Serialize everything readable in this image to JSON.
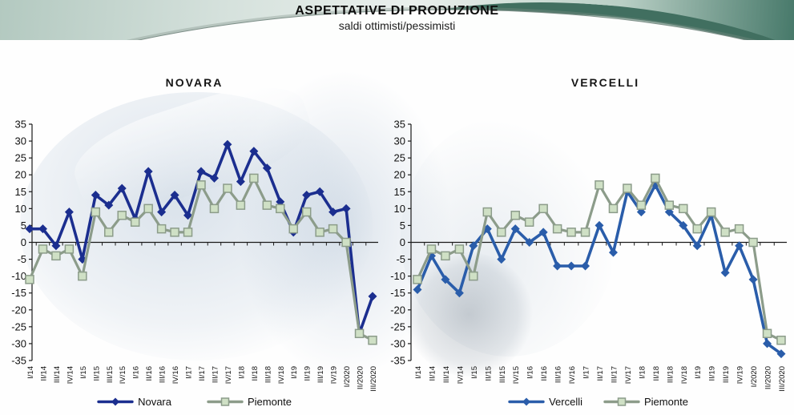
{
  "header": {
    "title": "ASPETTATIVE DI PRODUZIONE",
    "subtitle": "saldi ottimisti/pessimisti"
  },
  "colors": {
    "novara_line": "#1B2E8F",
    "vercelli_line": "#2A5DAA",
    "piemonte_line": "#8C9C8A",
    "piemonte_marker_fill": "#CFE0C5",
    "axis": "#1a1a1a",
    "banner_teal": "#416F60"
  },
  "chart_data": [
    {
      "type": "line",
      "title": "NOVARA",
      "ylim": [
        -35,
        35
      ],
      "ytick_step": 5,
      "grid": false,
      "legend_position": "bottom",
      "categories": [
        "I/14",
        "II/14",
        "III/14",
        "IV/14",
        "I/15",
        "II/15",
        "III/15",
        "IV/15",
        "I/16",
        "II/16",
        "III/16",
        "IV/16",
        "I/17",
        "II/17",
        "III/17",
        "IV/17",
        "I/18",
        "II/18",
        "III/18",
        "IV/18",
        "I/19",
        "II/19",
        "III/19",
        "IV/19",
        "I/2020",
        "II/2020",
        "III/2020"
      ],
      "series": [
        {
          "name": "Novara",
          "marker": "diamond",
          "color": "#1B2E8F",
          "values": [
            4,
            4,
            -1,
            9,
            -5,
            14,
            11,
            16,
            7,
            21,
            9,
            14,
            8,
            21,
            19,
            29,
            18,
            27,
            22,
            12,
            3,
            14,
            15,
            9,
            10,
            -27,
            -16
          ]
        },
        {
          "name": "Piemonte",
          "marker": "square",
          "color": "#8C9C8A",
          "marker_fill": "#CFE0C5",
          "values": [
            -11,
            -2,
            -4,
            -2,
            -10,
            9,
            3,
            8,
            6,
            10,
            4,
            3,
            3,
            17,
            10,
            16,
            11,
            19,
            11,
            10,
            4,
            9,
            3,
            4,
            0,
            -27,
            -29
          ]
        }
      ]
    },
    {
      "type": "line",
      "title": "VERCELLI",
      "ylim": [
        -35,
        35
      ],
      "ytick_step": 5,
      "grid": false,
      "legend_position": "bottom",
      "categories": [
        "I/14",
        "II/14",
        "III/14",
        "IV/14",
        "I/15",
        "II/15",
        "III/15",
        "IV/15",
        "I/16",
        "II/16",
        "III/16",
        "IV/16",
        "I/17",
        "II/17",
        "III/17",
        "IV/17",
        "I/18",
        "II/18",
        "III/18",
        "IV/18",
        "I/19",
        "II/19",
        "III/19",
        "IV/19",
        "I/2020",
        "II/2020",
        "III/2020"
      ],
      "series": [
        {
          "name": "Vercelli",
          "marker": "diamond",
          "color": "#2A5DAA",
          "values": [
            -14,
            -4,
            -11,
            -15,
            -1,
            4,
            -5,
            4,
            0,
            3,
            -7,
            -7,
            -7,
            5,
            -3,
            15,
            9,
            17,
            9,
            5,
            -1,
            8,
            -9,
            -1,
            -11,
            -30,
            -33
          ]
        },
        {
          "name": "Piemonte",
          "marker": "square",
          "color": "#8C9C8A",
          "marker_fill": "#CFE0C5",
          "values": [
            -11,
            -2,
            -4,
            -2,
            -10,
            9,
            3,
            8,
            6,
            10,
            4,
            3,
            3,
            17,
            10,
            16,
            11,
            19,
            11,
            10,
            4,
            9,
            3,
            4,
            0,
            -27,
            -29
          ]
        }
      ]
    }
  ]
}
